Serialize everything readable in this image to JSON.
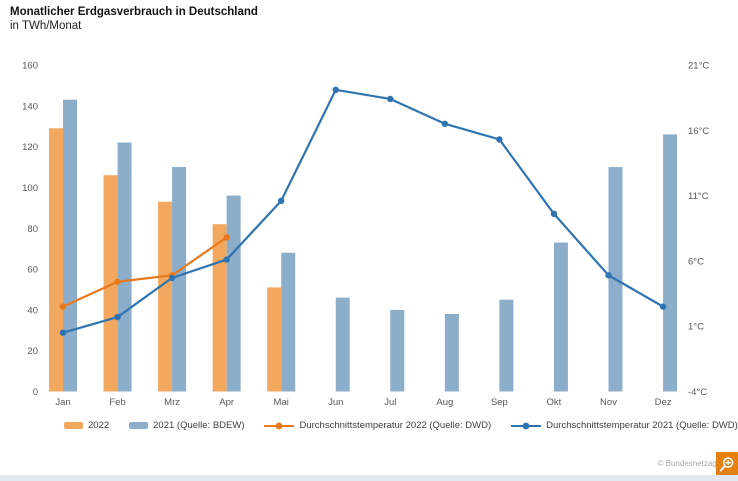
{
  "header": {
    "title": "Monatlicher Erdgasverbrauch in Deutschland",
    "subtitle": "in TWh/Monat"
  },
  "chart_data": {
    "type": "combo-bar-line",
    "categories": [
      "Jan",
      "Feb",
      "Mrz",
      "Apr",
      "Mai",
      "Jun",
      "Jul",
      "Aug",
      "Sep",
      "Okt",
      "Nov",
      "Dez"
    ],
    "bar_series": [
      {
        "name": "2022",
        "color": "#f2a95f",
        "axis": "left",
        "values": [
          129,
          106,
          93,
          82,
          51,
          null,
          null,
          null,
          null,
          null,
          null,
          null
        ]
      },
      {
        "name": "2021 (Quelle: BDEW)",
        "color": "#8caecb",
        "axis": "left",
        "values": [
          143,
          122,
          110,
          96,
          68,
          46,
          40,
          38,
          45,
          73,
          110,
          126
        ]
      }
    ],
    "line_series": [
      {
        "name": "Durchschnittstemperatur 2022 (Quelle: DWD)",
        "color": "#e8791d",
        "axis": "right",
        "values": [
          2.5,
          4.4,
          4.9,
          7.8,
          null,
          null,
          null,
          null,
          null,
          null,
          null,
          null
        ]
      },
      {
        "name": "Durchschnittstemperatur 2021 (Quelle: DWD)",
        "color": "#2e74b1",
        "axis": "right",
        "values": [
          0.5,
          1.7,
          4.7,
          6.1,
          10.6,
          19.1,
          18.4,
          16.5,
          15.3,
          9.6,
          4.9,
          2.5
        ]
      }
    ],
    "left_axis": {
      "min": 0,
      "max": 160,
      "step": 20,
      "ticks": [
        0,
        20,
        40,
        60,
        80,
        100,
        120,
        140,
        160
      ],
      "label": "TWh/Monat"
    },
    "right_axis": {
      "min": -4,
      "max": 21,
      "step": 5,
      "ticks": [
        -4,
        1,
        6,
        11,
        16,
        21
      ],
      "unit": "°C"
    },
    "grid": false,
    "legend_position": "bottom"
  },
  "footer": {
    "copyright": "© Bundesnetzagentur"
  },
  "icons": {
    "zoom": "magnifier-plus-icon"
  }
}
